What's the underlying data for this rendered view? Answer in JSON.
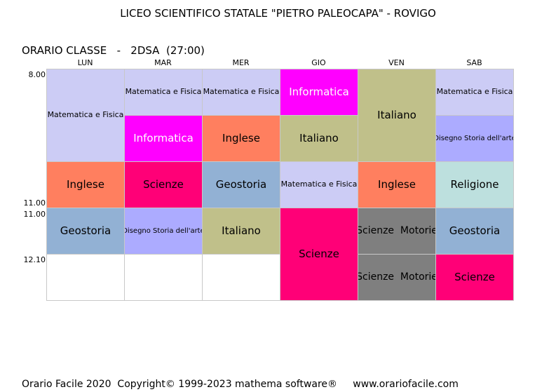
{
  "header": {
    "title": "LICEO SCIENTIFICO STATALE \"PIETRO PALEOCAPA\" - ROVIGO",
    "subtitle": "ORARIO CLASSE   -   2DSA  (27:00)"
  },
  "days": [
    "LUN",
    "MAR",
    "MER",
    "GIO",
    "VEN",
    "SAB"
  ],
  "times": [
    "8.00",
    "11.00",
    "11.00",
    "12.10"
  ],
  "colors": {
    "lavender": "#ccccf5",
    "magenta": "#ff00ff",
    "salmon": "#ff7f5f",
    "olive": "#c0c08a",
    "crimson": "#ff0077",
    "steelblue": "#92b1d4",
    "mint": "#bde0de",
    "gray": "#7f7f7f",
    "periwinkle": "#acabff",
    "empty": "#ffffff"
  },
  "lessons": [
    {
      "day": "LUN",
      "subject": "Matematica e Fisica",
      "color": "#ccccf5"
    },
    {
      "day": "LUN",
      "subject": "Inglese",
      "color": "#ff7f5f"
    },
    {
      "day": "LUN",
      "subject": "Geostoria",
      "color": "#92b1d4"
    },
    {
      "day": "MAR",
      "subject": "Matematica e Fisica",
      "color": "#ccccf5"
    },
    {
      "day": "MAR",
      "subject": "Informatica",
      "color": "#ff00ff"
    },
    {
      "day": "MAR",
      "subject": "Scienze",
      "color": "#ff0077"
    },
    {
      "day": "MAR",
      "subject": "Disegno Storia dell'arte",
      "color": "#acabff"
    },
    {
      "day": "MER",
      "subject": "Matematica e Fisica",
      "color": "#ccccf5"
    },
    {
      "day": "MER",
      "subject": "Inglese",
      "color": "#ff7f5f"
    },
    {
      "day": "MER",
      "subject": "Geostoria",
      "color": "#92b1d4"
    },
    {
      "day": "MER",
      "subject": "Italiano",
      "color": "#c0c08a"
    },
    {
      "day": "GIO",
      "subject": "Informatica",
      "color": "#ff00ff"
    },
    {
      "day": "GIO",
      "subject": "Italiano",
      "color": "#c0c08a"
    },
    {
      "day": "GIO",
      "subject": "Matematica e Fisica",
      "color": "#ccccf5"
    },
    {
      "day": "GIO",
      "subject": "Scienze",
      "color": "#ff0077"
    },
    {
      "day": "VEN",
      "subject": "Italiano",
      "color": "#c0c08a"
    },
    {
      "day": "VEN",
      "subject": "Inglese",
      "color": "#ff7f5f"
    },
    {
      "day": "VEN",
      "subject": "Scienze  Motorie",
      "color": "#7f7f7f"
    },
    {
      "day": "VEN",
      "subject": "Scienze  Motorie",
      "color": "#7f7f7f"
    },
    {
      "day": "SAB",
      "subject": "Matematica e Fisica",
      "color": "#ccccf5"
    },
    {
      "day": "SAB",
      "subject": "Disegno Storia dell'arte",
      "color": "#acabff"
    },
    {
      "day": "SAB",
      "subject": "Religione",
      "color": "#bde0de"
    },
    {
      "day": "SAB",
      "subject": "Geostoria",
      "color": "#92b1d4"
    },
    {
      "day": "SAB",
      "subject": "Scienze",
      "color": "#ff0077"
    }
  ],
  "footer": {
    "text": "Orario Facile 2020  Copyright© 1999-2023 mathema software®     www.orariofacile.com"
  }
}
